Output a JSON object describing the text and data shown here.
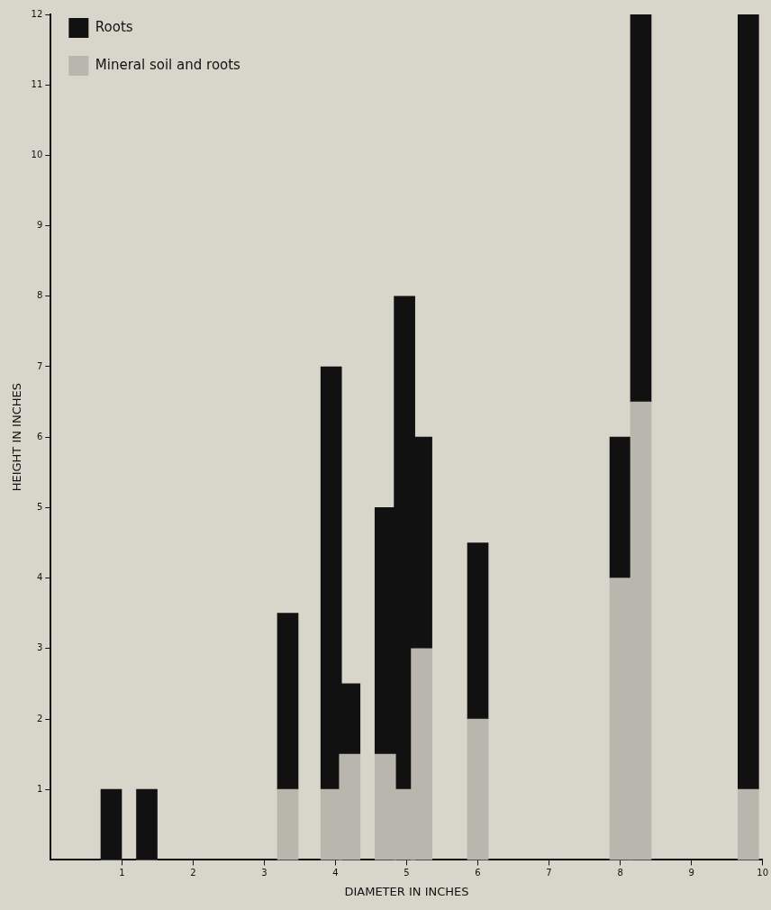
{
  "chart_data": {
    "type": "bar",
    "stacked": true,
    "xlabel": "DIAMETER IN INCHES",
    "ylabel": "HEIGHT IN INCHES",
    "x": [
      0.85,
      1.35,
      3.33,
      3.94,
      4.2,
      4.7,
      4.97,
      5.21,
      6.0,
      8.0,
      8.29,
      9.8
    ],
    "series": [
      {
        "name": "Mineral soil and roots",
        "color": "#b9b6ad",
        "values": [
          0,
          0,
          1,
          1,
          1.5,
          1.5,
          1,
          3,
          2,
          4,
          6.5,
          1
        ]
      },
      {
        "name": "Roots",
        "color": "#111111",
        "values": [
          1,
          1,
          2.5,
          6,
          1,
          3.5,
          7,
          3,
          2.5,
          2,
          5.5,
          11
        ]
      }
    ],
    "xlim": [
      0,
      10
    ],
    "xticks": [
      1,
      2,
      3,
      4,
      5,
      6,
      7,
      8,
      9,
      10
    ],
    "ylim": [
      0,
      12
    ],
    "yticks": [
      1,
      2,
      3,
      4,
      5,
      6,
      7,
      8,
      9,
      10,
      11,
      12
    ],
    "grid": false,
    "legend": "top left"
  }
}
